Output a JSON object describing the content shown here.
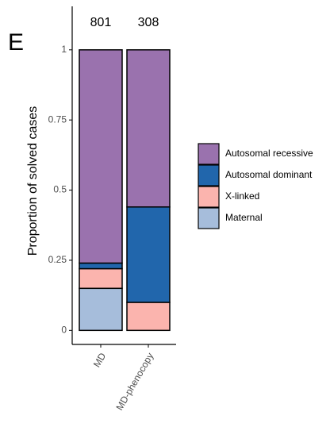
{
  "chart_data": {
    "type": "stacked_bar",
    "panel_label": "E",
    "y_label": "Proportion of solved cases",
    "categories": [
      "MD",
      "MD-phenocopy"
    ],
    "annotations": [
      "801",
      "308"
    ],
    "series": [
      {
        "name": "Maternal",
        "color": "#a6bddb",
        "values": [
          0.15,
          0
        ]
      },
      {
        "name": "X-linked",
        "color": "#fbb4ae",
        "values": [
          0.07,
          0.1
        ]
      },
      {
        "name": "Autosomal dominant",
        "color": "#2166ac",
        "values": [
          0.02,
          0.34
        ]
      },
      {
        "name": "Autosomal recessive",
        "color": "#9a72ae",
        "values": [
          0.76,
          0.56
        ]
      }
    ],
    "ylim": [
      -0.05,
      1.155
    ],
    "yticks": [
      0,
      0.25,
      0.5,
      0.75,
      1
    ],
    "grid": false
  }
}
